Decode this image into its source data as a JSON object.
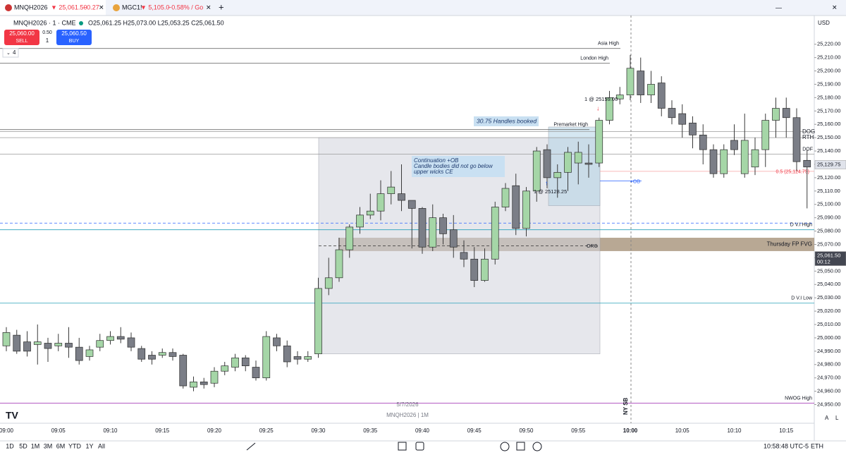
{
  "tabs": [
    {
      "symbol": "MNQH2026",
      "price": "▼ 25,061.50",
      "change": "−0.27"
    },
    {
      "symbol": "MGC1!",
      "price": "▼ 5,105.0",
      "change": "−0.58% / Go"
    }
  ],
  "legend": {
    "symbol": "MNQH2026 · 1 · CME",
    "ohlc": "O25,061.25 H25,073.00 L25,053.25 C25,061.50",
    "sell_price": "25,060.00",
    "sell": "SELL",
    "spread": "0.50",
    "qty": "1",
    "buy_price": "25,060.50",
    "buy": "BUY",
    "collapse": "4"
  },
  "currency": "USD",
  "chart_data": {
    "type": "candlestick",
    "categories": [
      "09:00",
      null,
      null,
      null,
      null,
      "09:05",
      null,
      null,
      null,
      null,
      "09:10",
      null,
      null,
      null,
      null,
      "09:15",
      null,
      null,
      null,
      null,
      "09:20",
      null,
      null,
      null,
      null,
      "09:25",
      null,
      null,
      null,
      null,
      "09:30",
      null,
      null,
      null,
      null,
      "09:35",
      null,
      null,
      null,
      null,
      "09:40",
      null,
      null,
      null,
      null,
      "09:45",
      null,
      null,
      null,
      null,
      "09:50",
      null,
      null,
      null,
      null,
      "09:55",
      null,
      null,
      null,
      null,
      "10:00",
      null,
      null,
      null,
      null,
      "10:05",
      null,
      null,
      null,
      null,
      "10:10",
      null,
      null,
      null,
      null,
      "10:15",
      null,
      null
    ],
    "open": [
      24994,
      25002,
      24997,
      24995,
      24996,
      24994,
      24996,
      24993,
      24986,
      24993,
      24998,
      25001,
      25000,
      24992,
      24987,
      24987,
      24989,
      24987,
      24963,
      24967,
      24966,
      24975,
      24978,
      24985,
      24978,
      24970,
      25000,
      24994,
      24986,
      24984,
      24988,
      25037,
      25045,
      25066,
      25083,
      25092,
      25095,
      25108,
      25108,
      25103,
      25097,
      25068,
      25090,
      25081,
      25064,
      25059,
      25043,
      25059,
      25098,
      25114,
      25082,
      25110,
      25141,
      25120,
      25124,
      25131,
      25131,
      25131,
      25163,
      25179,
      25182,
      25200,
      25182,
      25191,
      25172,
      25168,
      25161,
      25152,
      25141,
      25123,
      25148,
      25123,
      25128,
      25141,
      25163,
      25172,
      25165,
      25133
    ],
    "high": [
      25008,
      25006,
      25005,
      25010,
      25000,
      25003,
      25008,
      25000,
      24994,
      25003,
      25005,
      25008,
      25004,
      24994,
      24990,
      24992,
      24992,
      24988,
      24971,
      24970,
      24978,
      24982,
      24988,
      24987,
      24983,
      25005,
      25003,
      24998,
      24990,
      24990,
      25045,
      25060,
      25075,
      25085,
      25098,
      25108,
      25118,
      25125,
      25130,
      25103,
      25098,
      25100,
      25093,
      25092,
      25073,
      25068,
      25067,
      25102,
      25116,
      25123,
      25113,
      25143,
      25145,
      25130,
      25143,
      25147,
      25145,
      25165,
      25185,
      25188,
      25212,
      25210,
      25200,
      25196,
      25178,
      25175,
      25166,
      25160,
      25145,
      25145,
      25160,
      25168,
      25150,
      25168,
      25180,
      25180,
      25172,
      25141
    ],
    "low": [
      24990,
      24988,
      24986,
      24980,
      24982,
      24990,
      24985,
      24980,
      24983,
      24990,
      24995,
      24996,
      24990,
      24982,
      24980,
      24985,
      24983,
      24962,
      24960,
      24962,
      24963,
      24972,
      24975,
      24975,
      24968,
      24968,
      24990,
      24978,
      24980,
      24982,
      24985,
      25032,
      25042,
      25060,
      25078,
      25089,
      25088,
      25100,
      25095,
      25067,
      25063,
      25065,
      25070,
      25060,
      25053,
      25038,
      25042,
      25055,
      25095,
      25077,
      25076,
      25102,
      25112,
      25105,
      25110,
      25115,
      25120,
      25128,
      25160,
      25175,
      25178,
      25176,
      25176,
      25166,
      25160,
      25150,
      25142,
      25130,
      25120,
      25120,
      25137,
      25120,
      25122,
      25128,
      25150,
      25150,
      25125,
      25097
    ],
    "close": [
      25004,
      24990,
      24990,
      24997,
      24992,
      24996,
      24993,
      24983,
      24991,
      24998,
      25001,
      24999,
      24993,
      24984,
      24984,
      24989,
      24986,
      24964,
      24967,
      24965,
      24975,
      24979,
      24985,
      24979,
      24970,
      25001,
      24994,
      24982,
      24984,
      24986,
      25037,
      25045,
      25066,
      25083,
      25092,
      25095,
      25108,
      25113,
      25103,
      25097,
      25068,
      25090,
      25078,
      25068,
      25059,
      25043,
      25059,
      25098,
      25112,
      25082,
      25110,
      25140,
      25120,
      25124,
      25139,
      25139,
      25130,
      25163,
      25180,
      25182,
      25202,
      25182,
      25190,
      25172,
      25165,
      25160,
      25152,
      25141,
      25123,
      25141,
      25141,
      25148,
      25141,
      25163,
      25172,
      25165,
      25132,
      25128
    ],
    "up_color": "#a5d6a7",
    "down_color": "#7b7e87",
    "ylim": [
      24936,
      25232
    ],
    "yticks": [
      {
        "value": 24950,
        "label": "24,950.00"
      },
      {
        "value": 24960,
        "label": "24,960.00"
      },
      {
        "value": 24970,
        "label": "24,970.00"
      },
      {
        "value": 24980,
        "label": "24,980.00"
      },
      {
        "value": 24990,
        "label": "24,990.00"
      },
      {
        "value": 25000,
        "label": "25,000.00"
      },
      {
        "value": 25010,
        "label": "25,010.00"
      },
      {
        "value": 25020,
        "label": "25,020.00"
      },
      {
        "value": 25030,
        "label": "25,030.00"
      },
      {
        "value": 25040,
        "label": "25,040.00"
      },
      {
        "value": 25050,
        "label": "25,050.00"
      },
      {
        "value": 25060,
        "label": "25,060.00"
      },
      {
        "value": 25070,
        "label": "25,070.00"
      },
      {
        "value": 25080,
        "label": "25,080.00"
      },
      {
        "value": 25090,
        "label": "25,090.00"
      },
      {
        "value": 25100,
        "label": "25,100.00"
      },
      {
        "value": 25110,
        "label": "25,110.00"
      },
      {
        "value": 25120,
        "label": "25,120.00"
      },
      {
        "value": 25130,
        "label": "25,130.00"
      },
      {
        "value": 25140,
        "label": "25,140.00"
      },
      {
        "value": 25150,
        "label": "25,150.00"
      },
      {
        "value": 25160,
        "label": "25,160.00"
      },
      {
        "value": 25170,
        "label": "25,170.00"
      },
      {
        "value": 25180,
        "label": "25,180.00"
      },
      {
        "value": 25190,
        "label": "25,190.00"
      },
      {
        "value": 25200,
        "label": "25,200.00"
      },
      {
        "value": 25210,
        "label": "25,210.00"
      },
      {
        "value": 25220,
        "label": "25,220.00"
      }
    ],
    "levels": [
      {
        "label": "Asia High",
        "price": 25216.8,
        "color": "#555555"
      },
      {
        "label": "London High",
        "price": 25205.7,
        "color": "#555555"
      },
      {
        "label": "Premarket High",
        "price": 25156,
        "color": "#555555"
      },
      {
        "price": 25154.5,
        "color": "#9a9a9a"
      },
      {
        "price": 25150,
        "color": "#9a9a9a"
      },
      {
        "label": "DOF",
        "price": 25137.6,
        "color": "#9a9a9a"
      },
      {
        "label": "0.5 (25,124.75)",
        "price": 25124.75,
        "color": "#f7a1a1"
      },
      {
        "label": "+OB",
        "price": 25117.5,
        "color": "#2962ff"
      },
      {
        "price": 25086,
        "color": "#2962ff",
        "dashed": true
      },
      {
        "label": "D V.I High",
        "price": 25081,
        "color": "#26a0b8"
      },
      {
        "label": "ORG",
        "price": 25069,
        "color": "#333333",
        "dashed": true
      },
      {
        "label": "D V.I Low",
        "price": 25026,
        "color": "#26a0b8"
      },
      {
        "label": "NWOG High",
        "price": 24951,
        "color": "#9c27b0"
      }
    ],
    "zones": [
      {
        "label": "Thursday FP FVG",
        "from": 25065,
        "to": 25075,
        "color": "#a08b70"
      },
      {
        "from": 24988,
        "to": 25150,
        "color": "#d1d4dc"
      },
      {
        "from": 25099,
        "to": 25158,
        "color": "#b3d4e6"
      }
    ],
    "right_labels": [
      "DOG",
      "RTH"
    ],
    "price_tags": [
      {
        "value": 25129.75,
        "label": "25,129.75"
      },
      {
        "value": 25061.5,
        "label": "25,061.50"
      }
    ],
    "countdown": "00:12",
    "annotations": [
      "30.75 Handles booked",
      "Continuation +OB",
      "Candle bodies  did not go below",
      "upper wicks CE",
      "1 @ 25159.00",
      "1 @ 25128.25",
      "NY SB",
      "5/7/2026",
      "MNQH2026 | 1M"
    ]
  },
  "bottom_bar": {
    "ranges": [
      "1D",
      "5D",
      "1M",
      "3M",
      "6M",
      "YTD",
      "1Y",
      "All"
    ],
    "clock": "10:58:48 UTC-5",
    "session": "ETH"
  },
  "scale_buttons": [
    "A",
    "L"
  ]
}
